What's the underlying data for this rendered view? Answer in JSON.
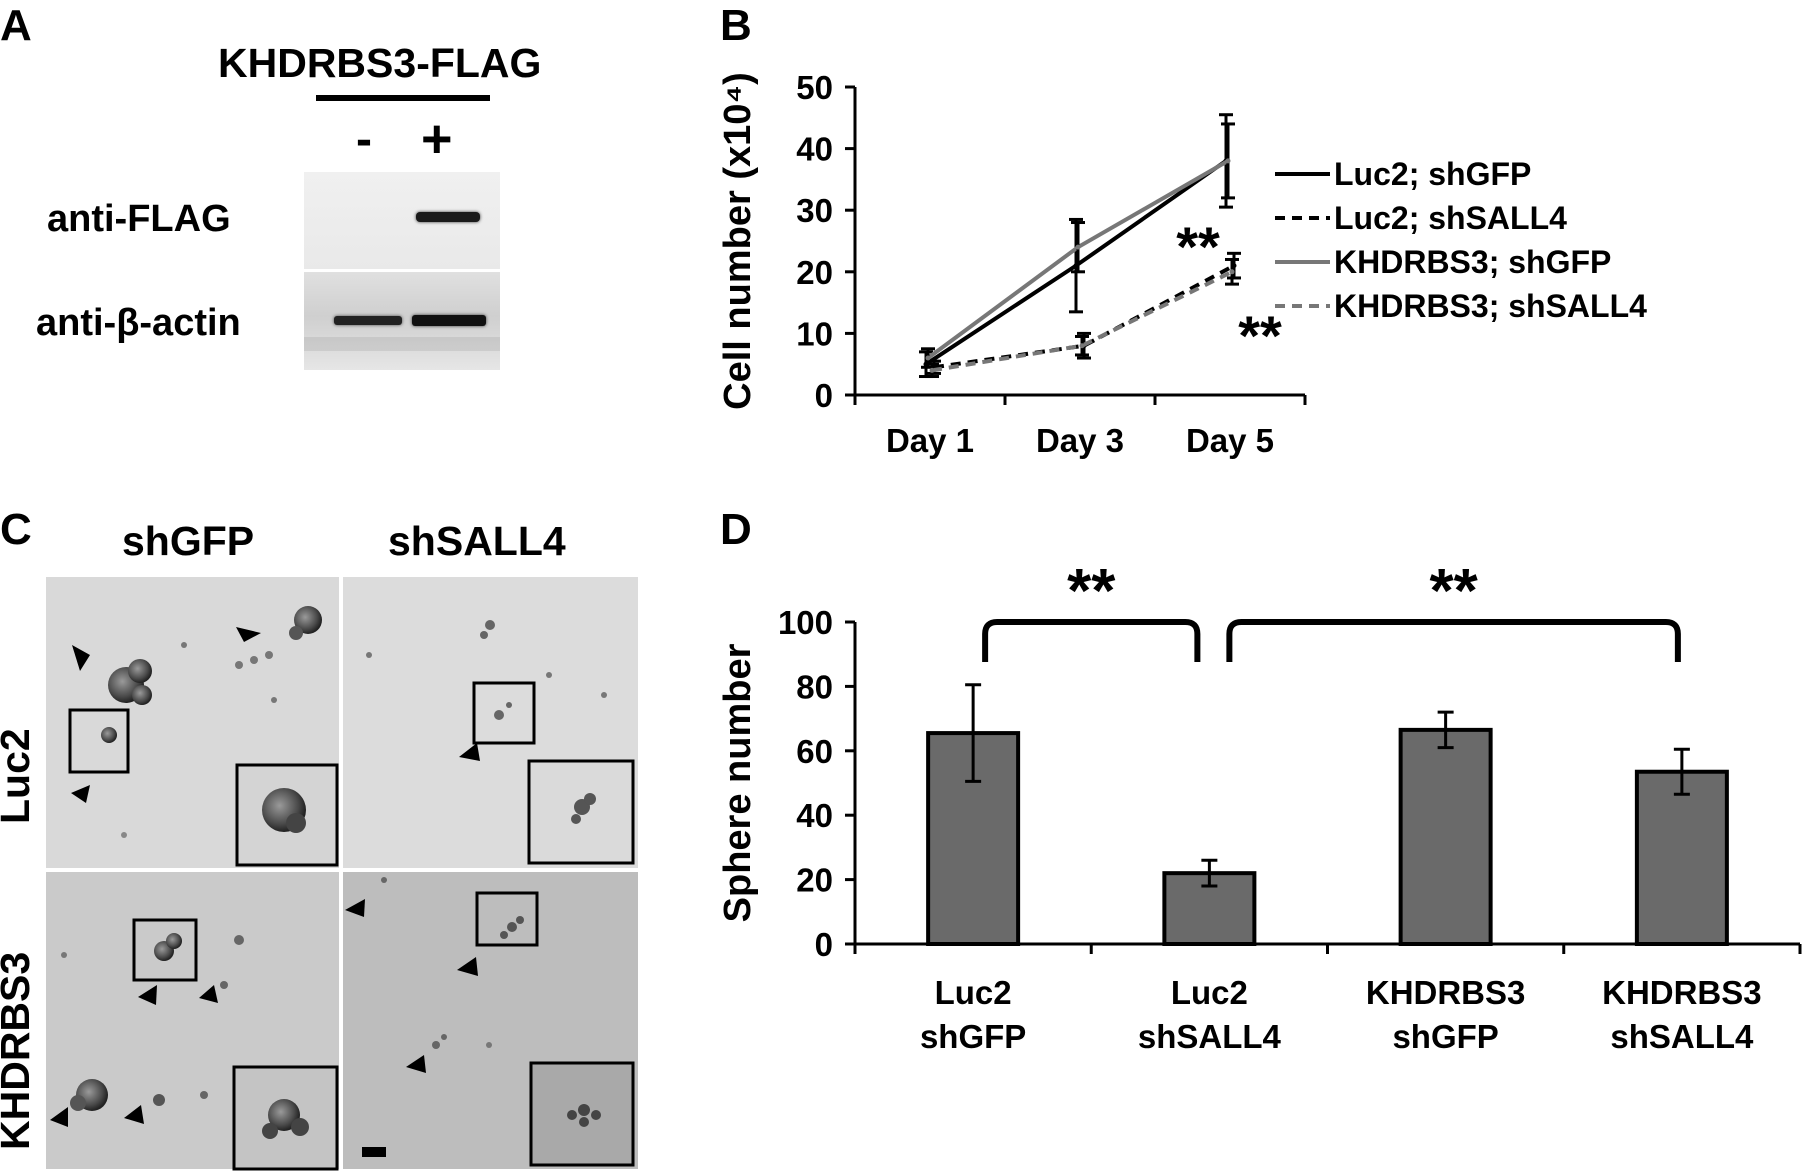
{
  "panel_a": {
    "label": "A",
    "construct_label": "KHDRBS3-FLAG",
    "lane_minus": "-",
    "lane_plus": "+",
    "row_labels": [
      "anti-FLAG",
      "anti-β-actin"
    ]
  },
  "panel_b": {
    "label": "B"
  },
  "panel_c": {
    "label": "C",
    "col_labels": [
      "shGFP",
      "shSALL4"
    ],
    "row_labels": [
      "Luc2",
      "KHDRBS3"
    ]
  },
  "panel_d": {
    "label": "D"
  },
  "chart_data": [
    {
      "type": "line",
      "panel": "B",
      "xlabel": "",
      "ylabel": "Cell number (x10⁴)",
      "ylim": [
        0,
        50
      ],
      "yticks": [
        0,
        10,
        20,
        30,
        40,
        50
      ],
      "categories": [
        "Day 1",
        "Day 3",
        "Day 5"
      ],
      "series": [
        {
          "name": "Luc2; shGFP",
          "values": [
            5,
            21,
            38
          ],
          "errors": [
            2,
            7.5,
            7.5
          ],
          "color": "#000000",
          "dash": "solid"
        },
        {
          "name": "Luc2; shSALL4",
          "values": [
            4.5,
            8,
            21
          ],
          "errors": [
            1,
            2,
            2
          ],
          "color": "#000000",
          "dash": "dashed"
        },
        {
          "name": "KHDRBS3; shGFP",
          "values": [
            6,
            24,
            38
          ],
          "errors": [
            1.5,
            4,
            6
          ],
          "color": "#777777",
          "dash": "solid"
        },
        {
          "name": "KHDRBS3; shSALL4",
          "values": [
            4,
            8,
            20
          ],
          "errors": [
            1,
            1.5,
            2
          ],
          "color": "#777777",
          "dash": "dashed"
        }
      ],
      "annotations": [
        "**",
        "**"
      ],
      "legend": "right",
      "grid": false
    },
    {
      "type": "bar",
      "panel": "D",
      "xlabel": "",
      "ylabel": "Sphere number",
      "ylim": [
        0,
        100
      ],
      "yticks": [
        0,
        20,
        40,
        60,
        80,
        100
      ],
      "categories": [
        [
          "Luc2",
          "shGFP"
        ],
        [
          "Luc2",
          "shSALL4"
        ],
        [
          "KHDRBS3",
          "shGFP"
        ],
        [
          "KHDRBS3",
          "shSALL4"
        ]
      ],
      "values": [
        65.5,
        22,
        66.5,
        53.5
      ],
      "errors": [
        15,
        4,
        5.5,
        7
      ],
      "bar_color": "#6a6a6a",
      "significance": [
        {
          "from": 0,
          "to": 1,
          "label": "**"
        },
        {
          "from": 1,
          "to": 3,
          "label": "**"
        }
      ],
      "grid": false
    }
  ]
}
